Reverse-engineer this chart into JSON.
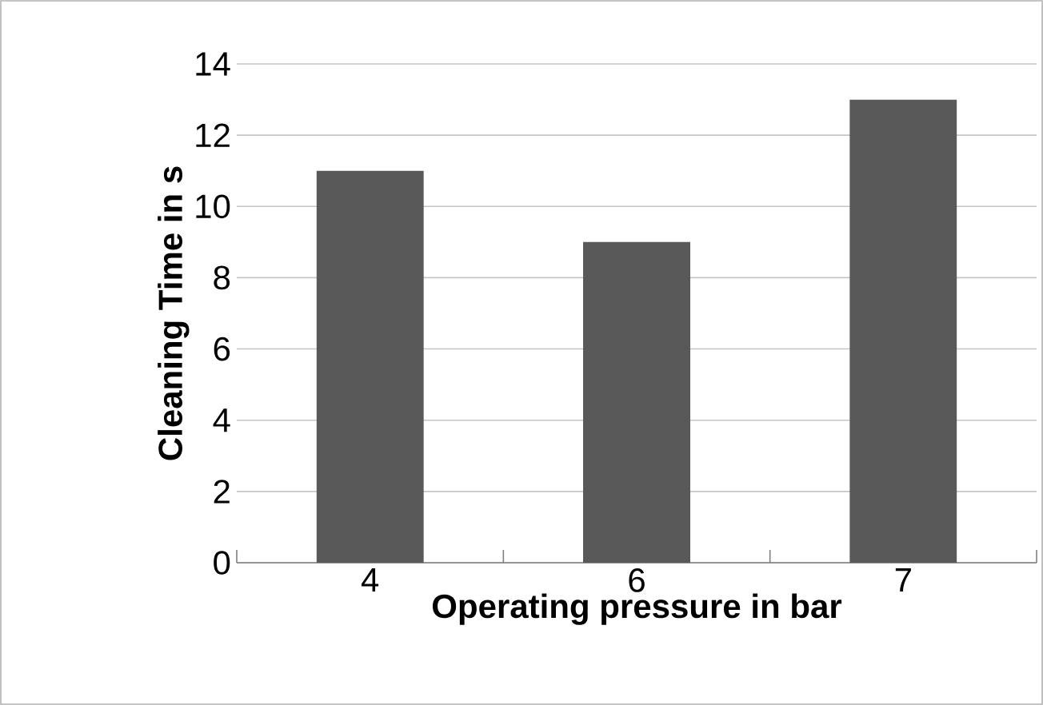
{
  "chart_data": {
    "type": "bar",
    "xlabel": "Operating pressure in bar",
    "ylabel": "Cleaning Time in s",
    "categories": [
      "4",
      "6",
      "7"
    ],
    "values": [
      11,
      9,
      13
    ],
    "color": "#595959",
    "ylim": [
      0,
      14
    ],
    "yticks": [
      0,
      2,
      4,
      6,
      8,
      10,
      12,
      14
    ],
    "grid": "y"
  }
}
